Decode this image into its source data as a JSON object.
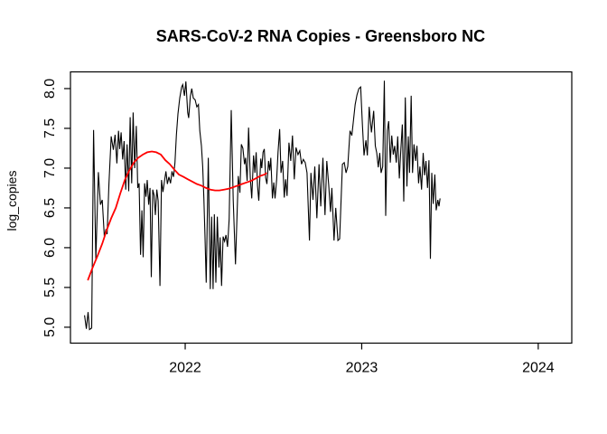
{
  "figure": {
    "background": "#ffffff",
    "frame_color": "#000000"
  },
  "chart_data": {
    "type": "line",
    "title": "SARS-CoV-2 RNA Copies - Greensboro NC",
    "xlabel": "",
    "ylabel": "log_copies",
    "x_ticks": [
      2022,
      2023,
      2024
    ],
    "x_tick_labels": [
      "2022",
      "2023",
      "2024"
    ],
    "y_ticks": [
      5.0,
      5.5,
      6.0,
      6.5,
      7.0,
      7.5,
      8.0
    ],
    "y_tick_labels": [
      "5.0",
      "5.5",
      "6.0",
      "6.5",
      "7.0",
      "7.5",
      "8.0"
    ],
    "xlim": [
      2021.35,
      2024.19
    ],
    "ylim": [
      4.8,
      8.21
    ],
    "grid": false,
    "legend": null,
    "series": [
      {
        "name": "log_copies",
        "color": "#000000",
        "width": 1.1,
        "points": [
          [
            2021.43,
            5.15
          ],
          [
            2021.44,
            4.98
          ],
          [
            2021.45,
            5.19
          ],
          [
            2021.458,
            4.97
          ],
          [
            2021.47,
            4.99
          ],
          [
            2021.481,
            7.48
          ],
          [
            2021.494,
            5.85
          ],
          [
            2021.508,
            6.95
          ],
          [
            2021.52,
            6.54
          ],
          [
            2021.53,
            6.6
          ],
          [
            2021.542,
            6.14
          ],
          [
            2021.55,
            6.22
          ],
          [
            2021.558,
            6.17
          ],
          [
            2021.568,
            6.8
          ],
          [
            2021.581,
            7.4
          ],
          [
            2021.593,
            7.23
          ],
          [
            2021.603,
            7.42
          ],
          [
            2021.613,
            7.06
          ],
          [
            2021.622,
            7.47
          ],
          [
            2021.629,
            7.24
          ],
          [
            2021.637,
            7.45
          ],
          [
            2021.646,
            7.11
          ],
          [
            2021.654,
            7.34
          ],
          [
            2021.663,
            6.73
          ],
          [
            2021.671,
            7.3
          ],
          [
            2021.68,
            6.71
          ],
          [
            2021.688,
            7.64
          ],
          [
            2021.697,
            6.81
          ],
          [
            2021.705,
            7.7
          ],
          [
            2021.714,
            7.0
          ],
          [
            2021.723,
            7.53
          ],
          [
            2021.731,
            6.75
          ],
          [
            2021.739,
            6.81
          ],
          [
            2021.747,
            5.91
          ],
          [
            2021.755,
            6.47
          ],
          [
            2021.762,
            5.88
          ],
          [
            2021.77,
            6.81
          ],
          [
            2021.778,
            6.64
          ],
          [
            2021.785,
            6.85
          ],
          [
            2021.793,
            6.54
          ],
          [
            2021.801,
            6.75
          ],
          [
            2021.808,
            5.63
          ],
          [
            2021.816,
            6.73
          ],
          [
            2021.824,
            6.66
          ],
          [
            2021.831,
            6.41
          ],
          [
            2021.839,
            6.73
          ],
          [
            2021.847,
            6.59
          ],
          [
            2021.857,
            5.52
          ],
          [
            2021.866,
            6.85
          ],
          [
            2021.874,
            6.7
          ],
          [
            2021.882,
            6.83
          ],
          [
            2021.891,
            6.96
          ],
          [
            2021.899,
            6.8
          ],
          [
            2021.908,
            6.89
          ],
          [
            2021.917,
            6.81
          ],
          [
            2021.925,
            6.96
          ],
          [
            2021.934,
            6.89
          ],
          [
            2021.942,
            7.07
          ],
          [
            2021.95,
            7.42
          ],
          [
            2021.959,
            7.68
          ],
          [
            2021.969,
            7.88
          ],
          [
            2021.98,
            8.02
          ],
          [
            2021.986,
            8.05
          ],
          [
            2021.996,
            7.91
          ],
          [
            2022.004,
            8.09
          ],
          [
            2022.014,
            7.7
          ],
          [
            2022.02,
            7.63
          ],
          [
            2022.029,
            7.9
          ],
          [
            2022.037,
            8.0
          ],
          [
            2022.046,
            7.88
          ],
          [
            2022.056,
            7.86
          ],
          [
            2022.066,
            7.77
          ],
          [
            2022.075,
            7.8
          ],
          [
            2022.083,
            7.47
          ],
          [
            2022.092,
            7.28
          ],
          [
            2022.099,
            7.02
          ],
          [
            2022.106,
            6.62
          ],
          [
            2022.112,
            6.16
          ],
          [
            2022.119,
            5.56
          ],
          [
            2022.131,
            7.13
          ],
          [
            2022.142,
            5.48
          ],
          [
            2022.15,
            6.39
          ],
          [
            2022.158,
            5.48
          ],
          [
            2022.165,
            6.42
          ],
          [
            2022.174,
            5.56
          ],
          [
            2022.182,
            6.39
          ],
          [
            2022.191,
            5.75
          ],
          [
            2022.198,
            6.13
          ],
          [
            2022.206,
            5.52
          ],
          [
            2022.215,
            6.14
          ],
          [
            2022.223,
            6.08
          ],
          [
            2022.231,
            6.16
          ],
          [
            2022.24,
            6.01
          ],
          [
            2022.249,
            6.36
          ],
          [
            2022.261,
            7.73
          ],
          [
            2022.272,
            6.6
          ],
          [
            2022.285,
            5.79
          ],
          [
            2022.301,
            6.9
          ],
          [
            2022.31,
            6.69
          ],
          [
            2022.318,
            7.3
          ],
          [
            2022.327,
            7.25
          ],
          [
            2022.336,
            7.05
          ],
          [
            2022.342,
            7.13
          ],
          [
            2022.351,
            6.84
          ],
          [
            2022.359,
            7.51
          ],
          [
            2022.369,
            6.88
          ],
          [
            2022.377,
            6.62
          ],
          [
            2022.387,
            7.16
          ],
          [
            2022.395,
            6.94
          ],
          [
            2022.402,
            7.2
          ],
          [
            2022.41,
            6.78
          ],
          [
            2022.417,
            6.59
          ],
          [
            2022.428,
            7.12
          ],
          [
            2022.434,
            7.0
          ],
          [
            2022.441,
            7.2
          ],
          [
            2022.448,
            7.24
          ],
          [
            2022.456,
            6.88
          ],
          [
            2022.463,
            6.8
          ],
          [
            2022.472,
            7.09
          ],
          [
            2022.479,
            6.97
          ],
          [
            2022.485,
            7.13
          ],
          [
            2022.494,
            6.62
          ],
          [
            2022.502,
            6.82
          ],
          [
            2022.509,
            6.62
          ],
          [
            2022.518,
            6.86
          ],
          [
            2022.526,
            7.2
          ],
          [
            2022.535,
            7.49
          ],
          [
            2022.543,
            6.94
          ],
          [
            2022.552,
            7.09
          ],
          [
            2022.561,
            6.63
          ],
          [
            2022.569,
            6.86
          ],
          [
            2022.577,
            6.65
          ],
          [
            2022.588,
            7.32
          ],
          [
            2022.598,
            7.09
          ],
          [
            2022.608,
            7.41
          ],
          [
            2022.618,
            6.86
          ],
          [
            2022.628,
            7.26
          ],
          [
            2022.639,
            7.17
          ],
          [
            2022.649,
            7.22
          ],
          [
            2022.659,
            7.05
          ],
          [
            2022.669,
            7.11
          ],
          [
            2022.68,
            7.07
          ],
          [
            2022.69,
            6.94
          ],
          [
            2022.704,
            6.09
          ],
          [
            2022.712,
            6.94
          ],
          [
            2022.724,
            6.6
          ],
          [
            2022.734,
            7.02
          ],
          [
            2022.746,
            6.37
          ],
          [
            2022.758,
            7.05
          ],
          [
            2022.768,
            6.52
          ],
          [
            2022.78,
            7.13
          ],
          [
            2022.792,
            6.41
          ],
          [
            2022.802,
            7.09
          ],
          [
            2022.813,
            6.79
          ],
          [
            2022.823,
            6.45
          ],
          [
            2022.831,
            6.75
          ],
          [
            2022.843,
            6.09
          ],
          [
            2022.853,
            6.5
          ],
          [
            2022.865,
            6.09
          ],
          [
            2022.875,
            6.11
          ],
          [
            2022.891,
            7.05
          ],
          [
            2022.901,
            7.07
          ],
          [
            2022.911,
            6.94
          ],
          [
            2022.921,
            7.02
          ],
          [
            2022.934,
            7.47
          ],
          [
            2022.944,
            7.41
          ],
          [
            2022.954,
            7.62
          ],
          [
            2022.963,
            7.8
          ],
          [
            2022.973,
            7.92
          ],
          [
            2022.984,
            8.0
          ],
          [
            2022.994,
            8.02
          ],
          [
            2023.004,
            7.55
          ],
          [
            2023.013,
            7.16
          ],
          [
            2023.024,
            7.35
          ],
          [
            2023.032,
            7.16
          ],
          [
            2023.042,
            7.77
          ],
          [
            2023.055,
            7.45
          ],
          [
            2023.068,
            7.72
          ],
          [
            2023.077,
            7.28
          ],
          [
            2023.085,
            7.19
          ],
          [
            2023.094,
            7.01
          ],
          [
            2023.102,
            7.19
          ],
          [
            2023.11,
            6.94
          ],
          [
            2023.119,
            7.02
          ],
          [
            2023.128,
            8.1
          ],
          [
            2023.136,
            6.4
          ],
          [
            2023.145,
            7.47
          ],
          [
            2023.153,
            7.59
          ],
          [
            2023.162,
            7.07
          ],
          [
            2023.17,
            7.41
          ],
          [
            2023.179,
            7.17
          ],
          [
            2023.187,
            7.28
          ],
          [
            2023.196,
            7.07
          ],
          [
            2023.204,
            7.4
          ],
          [
            2023.213,
            6.87
          ],
          [
            2023.221,
            7.2
          ],
          [
            2023.23,
            7.55
          ],
          [
            2023.238,
            6.58
          ],
          [
            2023.247,
            7.89
          ],
          [
            2023.256,
            6.77
          ],
          [
            2023.264,
            7.4
          ],
          [
            2023.271,
            6.94
          ],
          [
            2023.28,
            7.91
          ],
          [
            2023.288,
            6.94
          ],
          [
            2023.296,
            7.3
          ],
          [
            2023.305,
            7.09
          ],
          [
            2023.313,
            7.28
          ],
          [
            2023.322,
            6.81
          ],
          [
            2023.33,
            7.02
          ],
          [
            2023.339,
            6.73
          ],
          [
            2023.348,
            7.19
          ],
          [
            2023.356,
            6.91
          ],
          [
            2023.364,
            7.09
          ],
          [
            2023.373,
            6.75
          ],
          [
            2023.381,
            7.1
          ],
          [
            2023.389,
            5.86
          ],
          [
            2023.397,
            6.94
          ],
          [
            2023.405,
            6.55
          ],
          [
            2023.414,
            6.92
          ],
          [
            2023.422,
            6.47
          ],
          [
            2023.431,
            6.6
          ],
          [
            2023.438,
            6.52
          ],
          [
            2023.444,
            6.62
          ]
        ]
      },
      {
        "name": "loess-trend",
        "color": "#ff0000",
        "width": 1.8,
        "points": [
          [
            2021.448,
            5.59
          ],
          [
            2021.474,
            5.74
          ],
          [
            2021.504,
            5.9
          ],
          [
            2021.53,
            6.05
          ],
          [
            2021.555,
            6.22
          ],
          [
            2021.581,
            6.37
          ],
          [
            2021.607,
            6.5
          ],
          [
            2021.632,
            6.68
          ],
          [
            2021.658,
            6.85
          ],
          [
            2021.683,
            6.97
          ],
          [
            2021.709,
            7.07
          ],
          [
            2021.734,
            7.13
          ],
          [
            2021.76,
            7.17
          ],
          [
            2021.785,
            7.2
          ],
          [
            2021.811,
            7.21
          ],
          [
            2021.836,
            7.2
          ],
          [
            2021.862,
            7.17
          ],
          [
            2021.888,
            7.1
          ],
          [
            2021.913,
            7.05
          ],
          [
            2021.939,
            6.98
          ],
          [
            2021.964,
            6.92
          ],
          [
            2021.99,
            6.89
          ],
          [
            2022.015,
            6.86
          ],
          [
            2022.041,
            6.83
          ],
          [
            2022.066,
            6.8
          ],
          [
            2022.092,
            6.78
          ],
          [
            2022.118,
            6.75
          ],
          [
            2022.143,
            6.73
          ],
          [
            2022.169,
            6.72
          ],
          [
            2022.194,
            6.72
          ],
          [
            2022.22,
            6.73
          ],
          [
            2022.245,
            6.74
          ],
          [
            2022.271,
            6.76
          ],
          [
            2022.296,
            6.78
          ],
          [
            2022.322,
            6.8
          ],
          [
            2022.347,
            6.82
          ],
          [
            2022.373,
            6.84
          ],
          [
            2022.399,
            6.87
          ],
          [
            2022.424,
            6.9
          ],
          [
            2022.45,
            6.92
          ],
          [
            2022.462,
            6.94
          ]
        ]
      }
    ]
  }
}
